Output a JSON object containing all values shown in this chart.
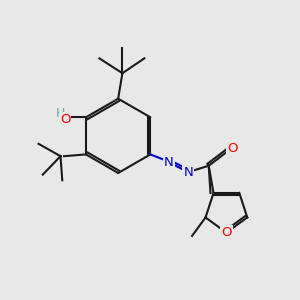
{
  "bg_color": "#e8e8e8",
  "line_color": "#1a1a1a",
  "bond_width": 1.5,
  "atom_colors": {
    "O": "#ff0000",
    "N": "#0000cd",
    "H": "#5ba3a0",
    "C": "#1a1a1a"
  },
  "font_size": 8.5,
  "fig_width": 3.0,
  "fig_height": 3.0,
  "dpi": 100
}
